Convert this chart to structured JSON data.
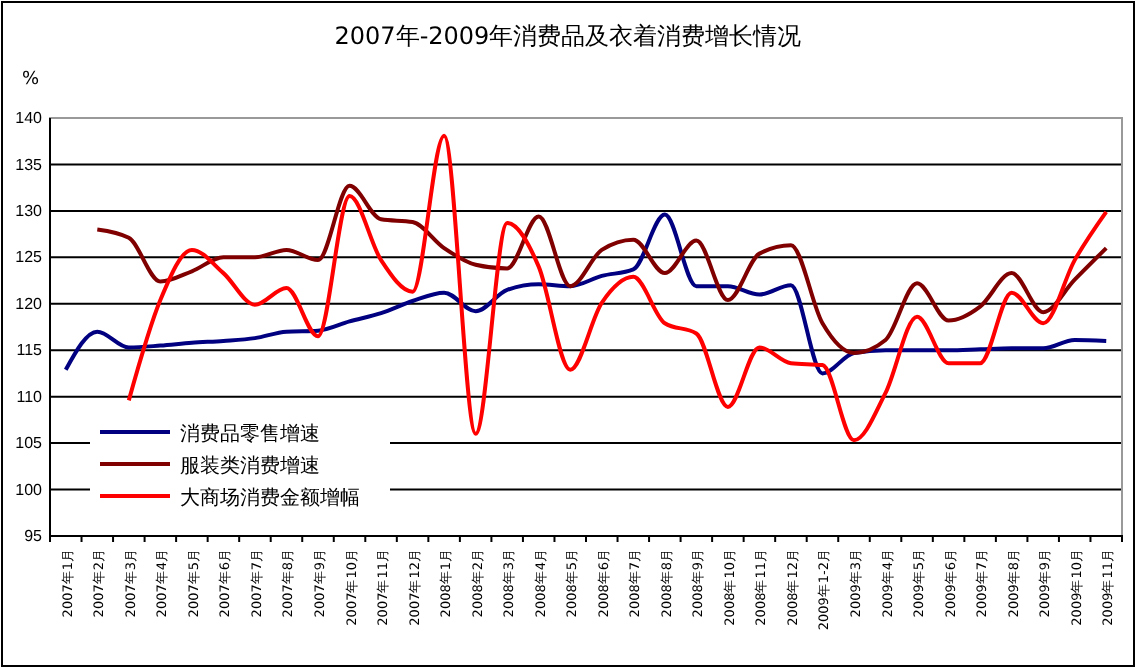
{
  "chart_data": {
    "type": "line",
    "title": "2007年-2009年消费品及衣着消费增长情况",
    "ylabel": "%",
    "categories": [
      "2007年1月",
      "2007年2月",
      "2007年3月",
      "2007年4月",
      "2007年5月",
      "2007年6月",
      "2007年7月",
      "2007年8月",
      "2007年9月",
      "2007年10月",
      "2007年11月",
      "2007年12月",
      "2008年1月",
      "2008年2月",
      "2008年3月",
      "2008年4月",
      "2008年5月",
      "2008年6月",
      "2008年7月",
      "2008年8月",
      "2008年9月",
      "2008年10月",
      "2008年11月",
      "2008年12月",
      "2009年1-2月",
      "2009年3月",
      "2009年4月",
      "2009年5月",
      "2009年6月",
      "2009年7月",
      "2009年8月",
      "2009年9月",
      "2009年10月",
      "2009年11月"
    ],
    "series": [
      {
        "name": "消费品零售增速",
        "color": "#000080",
        "values": [
          112.9,
          117.0,
          115.3,
          115.5,
          115.8,
          116.0,
          116.3,
          117.0,
          117.1,
          118.1,
          119.0,
          120.3,
          121.2,
          119.2,
          121.5,
          122.1,
          121.9,
          123.0,
          123.7,
          129.6,
          121.9,
          121.9,
          121.0,
          122.0,
          112.5,
          114.7,
          115.0,
          115.0,
          115.0,
          115.1,
          115.2,
          115.2,
          116.1,
          116.0
        ]
      },
      {
        "name": "服装类消费增速",
        "color": "#800000",
        "values": [
          null,
          128.0,
          127.1,
          122.4,
          123.5,
          125.0,
          125.0,
          125.8,
          124.7,
          132.7,
          129.1,
          128.8,
          126.0,
          124.2,
          123.8,
          129.4,
          121.9,
          125.8,
          126.9,
          123.3,
          126.8,
          120.4,
          125.4,
          126.3,
          117.9,
          114.7,
          116.1,
          122.2,
          118.2,
          119.7,
          123.3,
          119.1,
          122.6,
          126.0
        ]
      },
      {
        "name": "大商场消费金额增幅",
        "color": "#ff0000",
        "values": [
          null,
          null,
          109.6,
          120.4,
          125.8,
          123.3,
          119.9,
          121.7,
          116.5,
          131.6,
          124.7,
          121.3,
          138.1,
          106.0,
          128.7,
          124.0,
          112.9,
          120.1,
          122.9,
          117.9,
          116.8,
          108.9,
          115.3,
          113.6,
          113.4,
          105.3,
          110.4,
          118.6,
          113.6,
          113.6,
          121.2,
          117.9,
          124.7,
          129.9
        ]
      }
    ],
    "ylim": [
      95,
      140
    ],
    "yticks": [
      95,
      100,
      105,
      110,
      115,
      120,
      125,
      130,
      135,
      140
    ],
    "grid": "y",
    "legend": "bottom left",
    "line_style": "solid",
    "marker": "none"
  }
}
